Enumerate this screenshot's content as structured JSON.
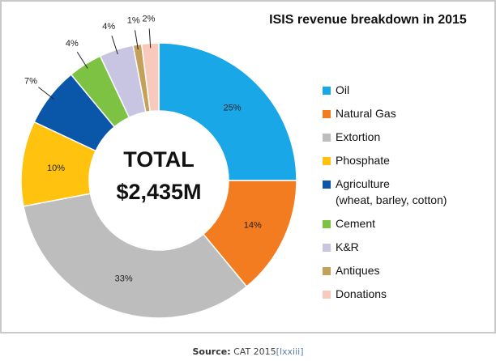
{
  "chart_data": {
    "type": "pie",
    "title": "ISIS revenue breakdown in 2015",
    "center_label": {
      "line1": "TOTAL",
      "line2": "$2,435M"
    },
    "legend_position": "right",
    "slices": [
      {
        "name": "Oil",
        "value": 25,
        "label": "25%",
        "color": "#1aa7e8"
      },
      {
        "name": "Natural Gas",
        "value": 14,
        "label": "14%",
        "color": "#f47c20"
      },
      {
        "name": "Extortion",
        "value": 33,
        "label": "33%",
        "color": "#bdbdbd"
      },
      {
        "name": "Phosphate",
        "value": 10,
        "label": "10%",
        "color": "#ffc20e"
      },
      {
        "name": "Agriculture",
        "name_line2": "(wheat, barley, cotton)",
        "value": 7,
        "label": "7%",
        "color": "#0a56a8"
      },
      {
        "name": "Cement",
        "value": 4,
        "label": "4%",
        "color": "#7dc242"
      },
      {
        "name": "K&R",
        "value": 4,
        "label": "4%",
        "color": "#c8c5e3"
      },
      {
        "name": "Antiques",
        "value": 1,
        "label": "1%",
        "color": "#c4a15a"
      },
      {
        "name": "Donations",
        "value": 2,
        "label": "2%",
        "color": "#f8c9bc"
      }
    ]
  },
  "caption": {
    "source_label": "Source:",
    "source_text": "CAT 2015",
    "source_ref": "[lxxiii]"
  }
}
